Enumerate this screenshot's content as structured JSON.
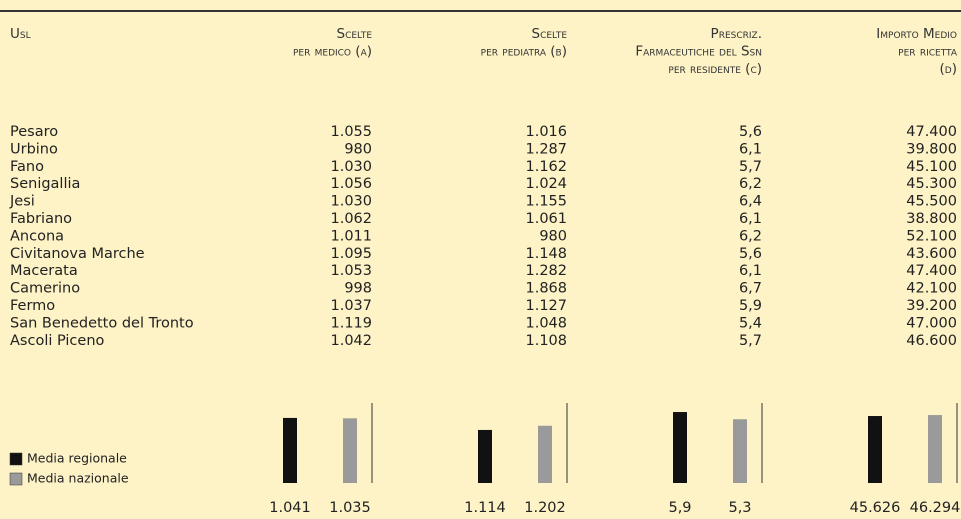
{
  "header": {
    "columns": [
      [
        "Usl"
      ],
      [
        "Scelte",
        "per medico (a)"
      ],
      [
        "Scelte",
        "per pediatra (b)"
      ],
      [
        "Prescriz.",
        "Farmaceutiche del Ssn",
        "per residente (c)"
      ],
      [
        "Importo Medio",
        "per ricetta",
        "(d)"
      ]
    ]
  },
  "table": {
    "rows": [
      [
        "Pesaro",
        "1.055",
        "1.016",
        "5,6",
        "47.400"
      ],
      [
        "Urbino",
        "980",
        "1.287",
        "6,1",
        "39.800"
      ],
      [
        "Fano",
        "1.030",
        "1.162",
        "5,7",
        "45.100"
      ],
      [
        "Senigallia",
        "1.056",
        "1.024",
        "6,2",
        "45.300"
      ],
      [
        "Jesi",
        "1.030",
        "1.155",
        "6,4",
        "45.500"
      ],
      [
        "Fabriano",
        "1.062",
        "1.061",
        "6,1",
        "38.800"
      ],
      [
        "Ancona",
        "1.011",
        "980",
        "6,2",
        "52.100"
      ],
      [
        "Civitanova Marche",
        "1.095",
        "1.148",
        "5,6",
        "43.600"
      ],
      [
        "Macerata",
        "1.053",
        "1.282",
        "6,1",
        "47.400"
      ],
      [
        "Camerino",
        "998",
        "1.868",
        "6,7",
        "42.100"
      ],
      [
        "Fermo",
        "1.037",
        "1.127",
        "5,9",
        "39.200"
      ],
      [
        "San Benedetto del Tronto",
        "1.119",
        "1.048",
        "5,4",
        "47.000"
      ],
      [
        "Ascoli Piceno",
        "1.042",
        "1.108",
        "5,7",
        "46.600"
      ]
    ]
  },
  "legend": [
    {
      "name": "Media regionale",
      "color": "#111111"
    },
    {
      "name": "Media nazionale",
      "color": "#9a9a9a"
    }
  ],
  "charts": [
    {
      "ylim": [
        0,
        1280
      ],
      "values": [
        {
          "value": 1041,
          "label": "1.041"
        },
        {
          "value": 1035,
          "label": "1.035"
        }
      ]
    },
    {
      "ylim": [
        0,
        1680
      ],
      "values": [
        {
          "value": 1114,
          "label": "1.114"
        },
        {
          "value": 1202,
          "label": "1.202"
        }
      ]
    },
    {
      "ylim": [
        0,
        6.65
      ],
      "values": [
        {
          "value": 5.9,
          "label": "5,9"
        },
        {
          "value": 5.3,
          "label": "5,3"
        }
      ]
    },
    {
      "ylim": [
        0,
        54500
      ],
      "values": [
        {
          "value": 45626,
          "label": "45.626"
        },
        {
          "value": 46294,
          "label": "46.294"
        }
      ]
    }
  ]
}
